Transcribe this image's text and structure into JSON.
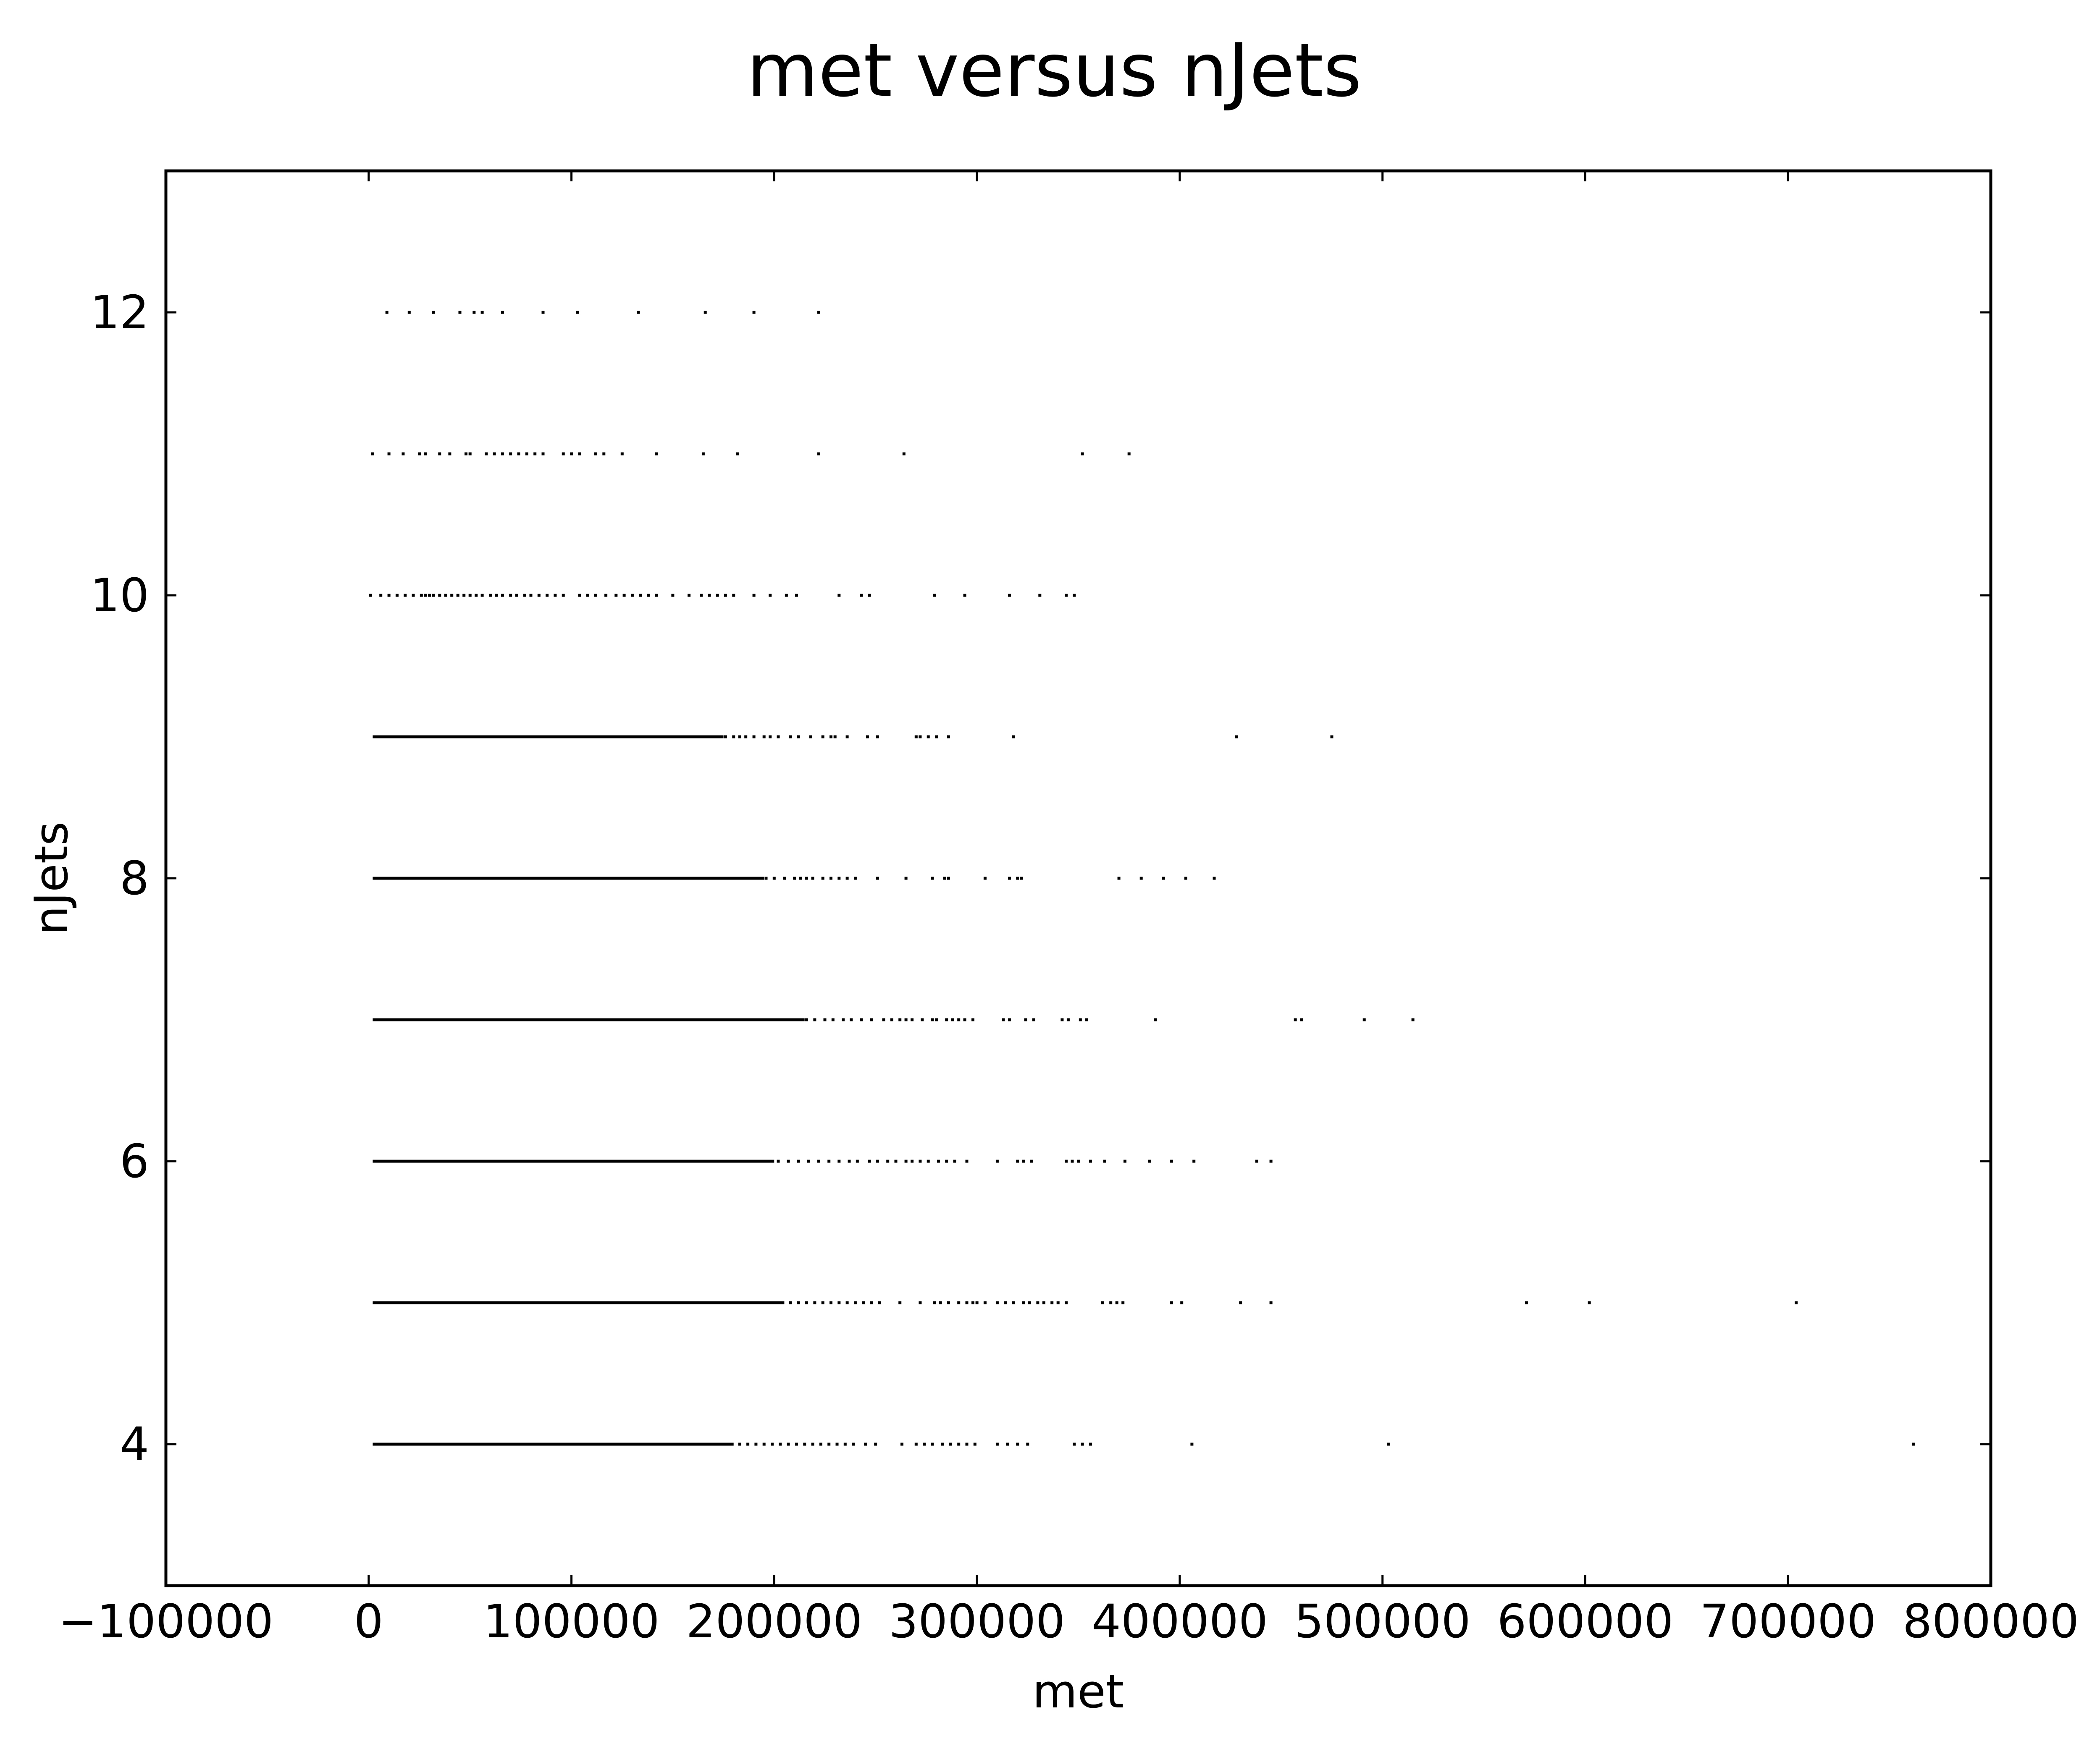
{
  "chart_data": {
    "type": "scatter",
    "title": "met versus nJets",
    "xlabel": "met",
    "ylabel": "nJets",
    "xlim": [
      -100000,
      800000
    ],
    "ylim": [
      3,
      13
    ],
    "grid": false,
    "legend": "none",
    "marker_color": "#000000",
    "x_ticks": [
      -100000,
      0,
      100000,
      200000,
      300000,
      400000,
      500000,
      600000,
      700000,
      800000
    ],
    "x_tick_labels": [
      "−100000",
      "0",
      "100000",
      "200000",
      "300000",
      "400000",
      "500000",
      "600000",
      "700000",
      "800000"
    ],
    "y_ticks": [
      4,
      6,
      8,
      10,
      12
    ],
    "y_tick_labels": [
      "4",
      "6",
      "8",
      "10",
      "12"
    ],
    "rows": [
      {
        "njets": 12,
        "dense_to": 0,
        "points": [
          9000,
          20000,
          32000,
          45000,
          52000,
          56000,
          66000,
          86000,
          103000,
          133000,
          166000,
          190000,
          222000
        ]
      },
      {
        "njets": 11,
        "dense_to": 0,
        "points": [
          2000,
          10000,
          17000,
          25000,
          28000,
          35000,
          40000,
          48000,
          50000,
          58000,
          62000,
          66000,
          70000,
          74000,
          78000,
          82000,
          86000,
          96000,
          100000,
          104000,
          112000,
          116000,
          125000,
          142000,
          165000,
          182000,
          222000,
          264000,
          352000,
          375000
        ]
      },
      {
        "njets": 10,
        "dense_to": 0,
        "points": [
          1000,
          6000,
          10000,
          14000,
          18000,
          22000,
          26000,
          28000,
          30000,
          32000,
          35000,
          38000,
          41000,
          44000,
          47000,
          50000,
          53000,
          56000,
          60000,
          63000,
          66000,
          70000,
          73000,
          77000,
          80000,
          84000,
          88000,
          92000,
          96000,
          104000,
          108000,
          112000,
          117000,
          122000,
          126000,
          130000,
          134000,
          138000,
          142000,
          150000,
          158000,
          164000,
          168000,
          172000,
          176000,
          180000,
          190000,
          198000,
          206000,
          211000,
          232000,
          243000,
          247000,
          279000,
          294000,
          316000,
          331000,
          344000,
          348000
        ]
      },
      {
        "njets": 9,
        "dense_to": 175000,
        "points": [
          176000,
          180000,
          183000,
          186000,
          190000,
          195000,
          198000,
          202000,
          208000,
          212000,
          218000,
          224000,
          228000,
          230000,
          236000,
          246000,
          251000,
          270000,
          272000,
          276000,
          280000,
          286000,
          318000,
          428000,
          475000
        ]
      },
      {
        "njets": 8,
        "dense_to": 195000,
        "points": [
          196000,
          200000,
          205000,
          210000,
          213000,
          216000,
          219000,
          224000,
          228000,
          232000,
          236000,
          240000,
          251000,
          265000,
          278000,
          284000,
          286000,
          304000,
          316000,
          320000,
          322000,
          370000,
          381000,
          392000,
          403000,
          417000
        ]
      },
      {
        "njets": 7,
        "dense_to": 215000,
        "points": [
          216000,
          220000,
          225000,
          229000,
          234000,
          238000,
          243000,
          248000,
          254000,
          258000,
          262000,
          265000,
          268000,
          273000,
          278000,
          280000,
          285000,
          288000,
          291000,
          294000,
          298000,
          313000,
          316000,
          324000,
          328000,
          342000,
          345000,
          351000,
          354000,
          388000,
          457000,
          460000,
          491000,
          515000
        ]
      },
      {
        "njets": 6,
        "dense_to": 200000,
        "points": [
          202000,
          207000,
          212000,
          217000,
          222000,
          227000,
          232000,
          237000,
          241000,
          247000,
          251000,
          256000,
          260000,
          265000,
          268000,
          272000,
          276000,
          281000,
          285000,
          289000,
          295000,
          310000,
          320000,
          323000,
          327000,
          344000,
          347000,
          350000,
          356000,
          363000,
          373000,
          385000,
          396000,
          407000,
          438000,
          445000
        ]
      },
      {
        "njets": 5,
        "dense_to": 205000,
        "points": [
          208000,
          212000,
          216000,
          220000,
          224000,
          228000,
          232000,
          236000,
          240000,
          244000,
          248000,
          252000,
          262000,
          272000,
          279000,
          282000,
          286000,
          291000,
          295000,
          298000,
          300000,
          304000,
          310000,
          314000,
          318000,
          323000,
          326000,
          330000,
          333000,
          337000,
          340000,
          344000,
          362000,
          366000,
          369000,
          372000,
          396000,
          401000,
          430000,
          445000,
          571000,
          602000,
          704000
        ]
      },
      {
        "njets": 4,
        "dense_to": 180000,
        "points": [
          183000,
          187000,
          191000,
          195000,
          199000,
          203000,
          207000,
          211000,
          215000,
          219000,
          223000,
          227000,
          231000,
          235000,
          239000,
          245000,
          250000,
          263000,
          270000,
          274000,
          278000,
          283000,
          287000,
          291000,
          295000,
          299000,
          310000,
          315000,
          320000,
          325000,
          348000,
          352000,
          356000,
          406000,
          503000,
          762000
        ]
      }
    ]
  }
}
